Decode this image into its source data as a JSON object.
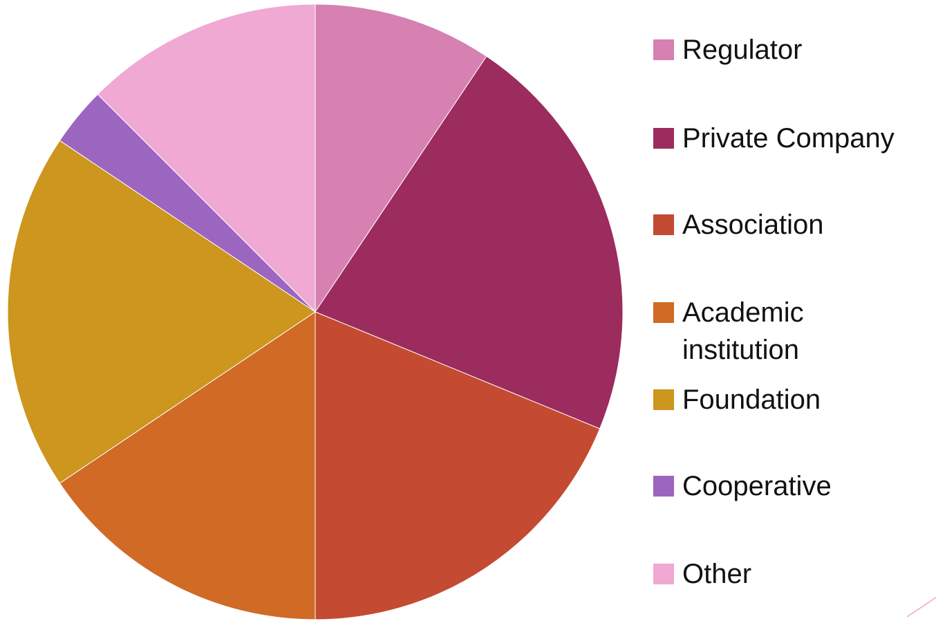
{
  "chart_data": {
    "type": "pie",
    "categories": [
      "Regulator",
      "Private Company",
      "Association",
      "Academic institution",
      "Foundation",
      "Cooperative",
      "Other"
    ],
    "values": [
      9.4,
      21.8,
      18.8,
      15.6,
      18.8,
      3.1,
      12.5
    ],
    "colors": [
      "#d681b2",
      "#9c2c5d",
      "#c44a32",
      "#d06a25",
      "#cc961f",
      "#9c66c0",
      "#f0a9d3"
    ],
    "legend": "right"
  }
}
